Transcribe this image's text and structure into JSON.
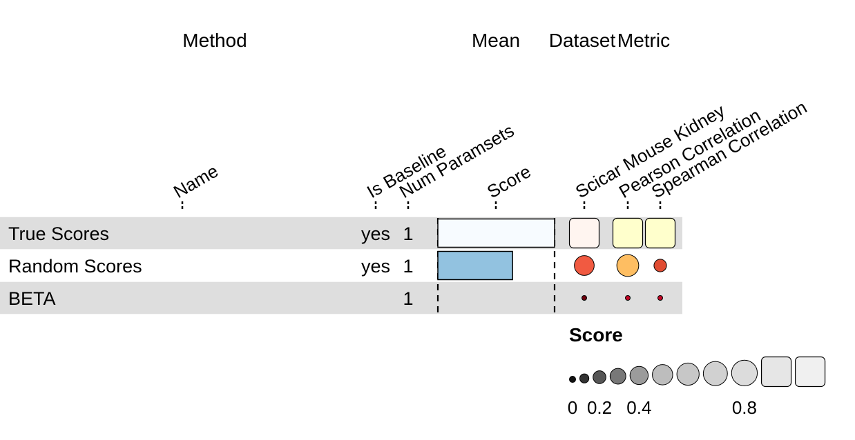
{
  "chart_data": {
    "type": "table",
    "group_headers": [
      {
        "key": "method",
        "label": "Method"
      },
      {
        "key": "mean",
        "label": "Mean"
      },
      {
        "key": "dataset",
        "label": "Dataset"
      },
      {
        "key": "metric",
        "label": "Metric"
      }
    ],
    "columns": [
      {
        "key": "name",
        "label": "Name",
        "kind": "text"
      },
      {
        "key": "is_baseline",
        "label": "Is Baseline",
        "kind": "text"
      },
      {
        "key": "num_paramsets",
        "label": "Num Paramsets",
        "kind": "text"
      },
      {
        "key": "score",
        "label": "Score",
        "kind": "bar"
      },
      {
        "key": "scicar_mouse_kidney",
        "label": "Scicar Mouse Kidney",
        "kind": "circle",
        "palette": "reds"
      },
      {
        "key": "pearson_correlation",
        "label": "Pearson Correlation",
        "kind": "circle",
        "palette": "ylorrd"
      },
      {
        "key": "spearman_correlation",
        "label": "Spearman Correlation",
        "kind": "circle",
        "palette": "ylorrd"
      }
    ],
    "rows": [
      {
        "name": "True Scores",
        "is_baseline": "yes",
        "num_paramsets": "1",
        "score": 1.0,
        "scicar_mouse_kidney": 1.0,
        "pearson_correlation": 1.0,
        "spearman_correlation": 1.0
      },
      {
        "name": "Random Scores",
        "is_baseline": "yes",
        "num_paramsets": "1",
        "score": 0.64,
        "scicar_mouse_kidney": 0.45,
        "pearson_correlation": 0.55,
        "spearman_correlation": 0.18
      },
      {
        "name": "BETA",
        "is_baseline": "",
        "num_paramsets": "1",
        "score": 0.0,
        "scicar_mouse_kidney": 0.02,
        "pearson_correlation": 0.02,
        "spearman_correlation": 0.02
      }
    ],
    "legend": {
      "title": "Score",
      "levels": [
        0,
        0.1,
        0.2,
        0.3,
        0.4,
        0.5,
        0.6,
        0.7,
        0.8,
        0.9,
        1.0
      ],
      "tick_labels": [
        {
          "value": 0,
          "label": "0"
        },
        {
          "value": 0.2,
          "label": "0.2"
        },
        {
          "value": 0.4,
          "label": "0.4"
        },
        {
          "value": 0.8,
          "label": "0.8"
        }
      ]
    },
    "colors": {
      "row_stripe": "#dedede",
      "bar_low": "#f7fbff",
      "bar_high": "#6baed6",
      "legend_low": "#111111",
      "legend_high": "#f0f0f0"
    }
  }
}
